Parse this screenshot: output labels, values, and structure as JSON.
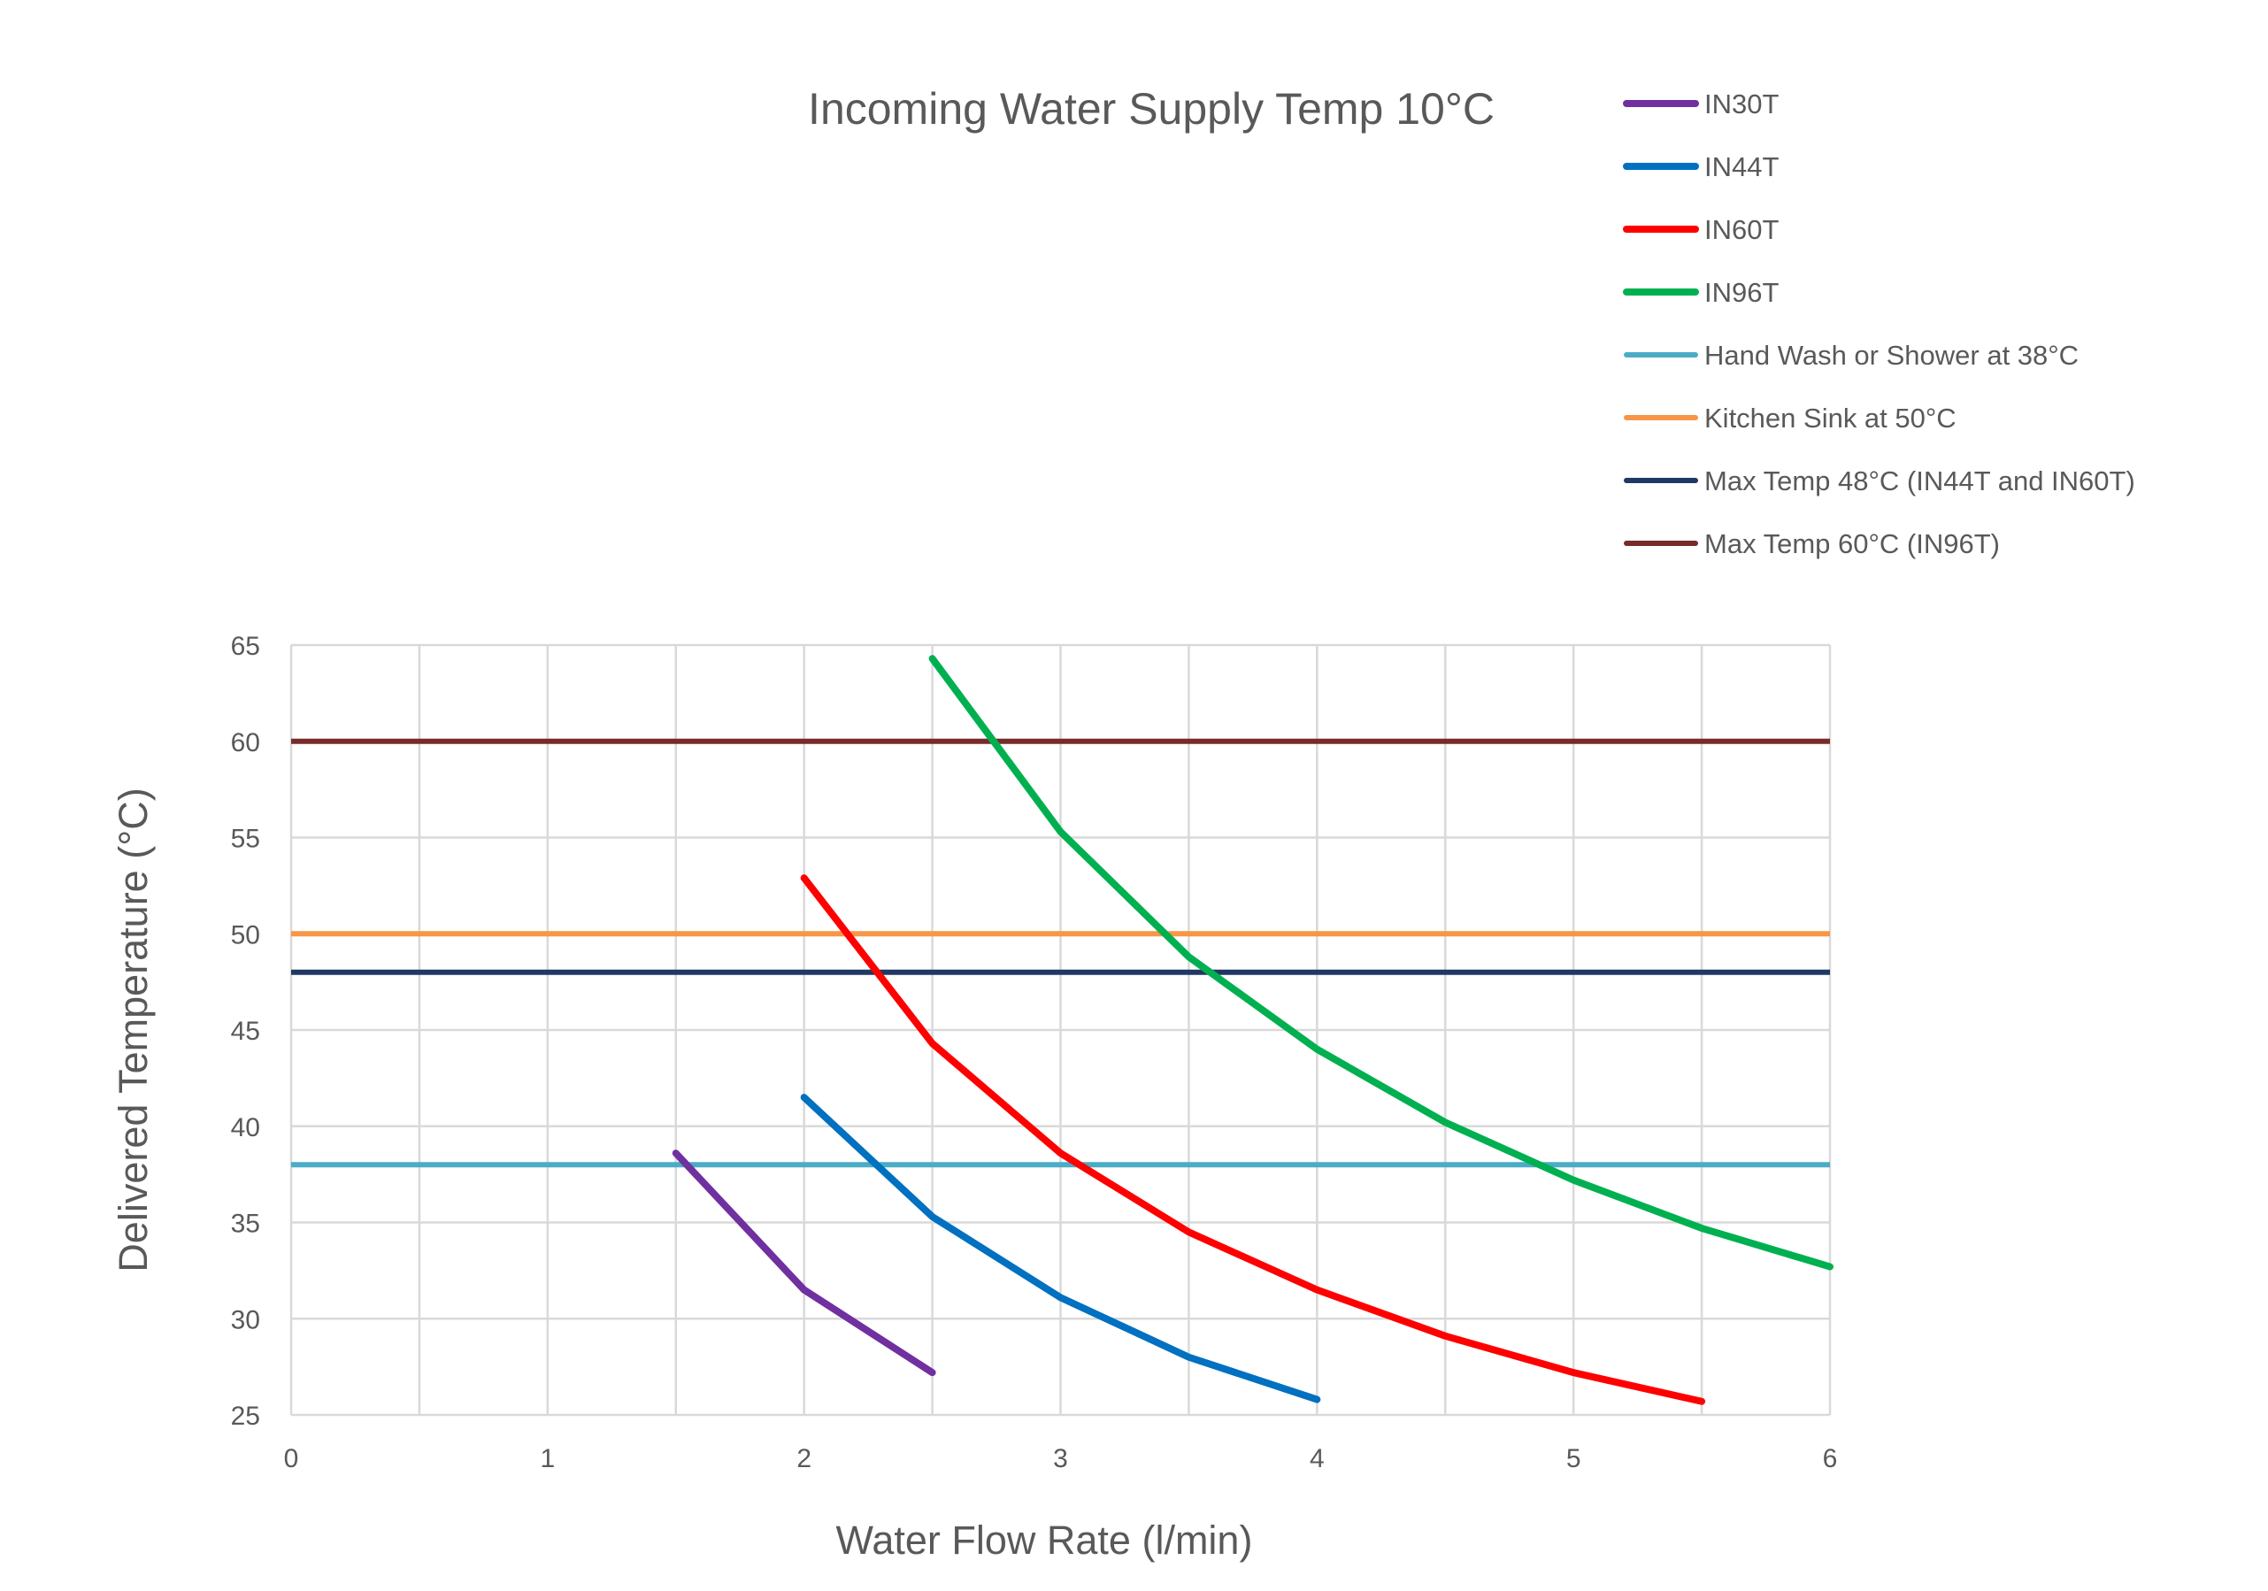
{
  "chart_data": {
    "type": "line",
    "title": "Incoming Water Supply Temp 10°C",
    "xlabel": "Water Flow Rate (l/min)",
    "ylabel": "Delivered Temperature (°C)",
    "xlim": [
      0,
      6
    ],
    "ylim": [
      25,
      65
    ],
    "x_ticks": [
      0,
      1,
      2,
      3,
      4,
      5,
      6
    ],
    "y_ticks": [
      25,
      30,
      35,
      40,
      45,
      50,
      55,
      60,
      65
    ],
    "x_minor_grid_step": 0.5,
    "grid": true,
    "legend_position": "top-right",
    "series": [
      {
        "name": "IN30T",
        "color": "#7030a0",
        "x": [
          1.5,
          2,
          2.5
        ],
        "y": [
          38.6,
          31.5,
          27.2
        ]
      },
      {
        "name": "IN44T",
        "color": "#0070c0",
        "x": [
          2,
          2.5,
          3,
          3.5,
          4
        ],
        "y": [
          41.5,
          35.3,
          31.1,
          28.0,
          25.8
        ]
      },
      {
        "name": "IN60T",
        "color": "#ff0000",
        "x": [
          2,
          2.5,
          3,
          3.5,
          4,
          4.5,
          5,
          5.5
        ],
        "y": [
          52.9,
          44.3,
          38.6,
          34.5,
          31.5,
          29.1,
          27.2,
          25.7
        ]
      },
      {
        "name": "IN96T",
        "color": "#00b050",
        "x": [
          2.5,
          3,
          3.5,
          4,
          4.5,
          5,
          5.5,
          6
        ],
        "y": [
          64.3,
          55.3,
          48.8,
          44.0,
          40.2,
          37.2,
          34.7,
          32.7
        ]
      },
      {
        "name": "Hand Wash or Shower at 38°C",
        "color": "#4bacc6",
        "x": [
          0,
          6
        ],
        "y": [
          38,
          38
        ]
      },
      {
        "name": "Kitchen Sink at 50°C",
        "color": "#f79646",
        "x": [
          0,
          6
        ],
        "y": [
          50,
          50
        ]
      },
      {
        "name": "Max Temp 48°C (IN44T and IN60T)",
        "color": "#1f3864",
        "x": [
          0,
          6
        ],
        "y": [
          48,
          48
        ]
      },
      {
        "name": "Max Temp 60°C  (IN96T)",
        "color": "#772c2a",
        "x": [
          0,
          6
        ],
        "y": [
          60,
          60
        ]
      }
    ]
  }
}
